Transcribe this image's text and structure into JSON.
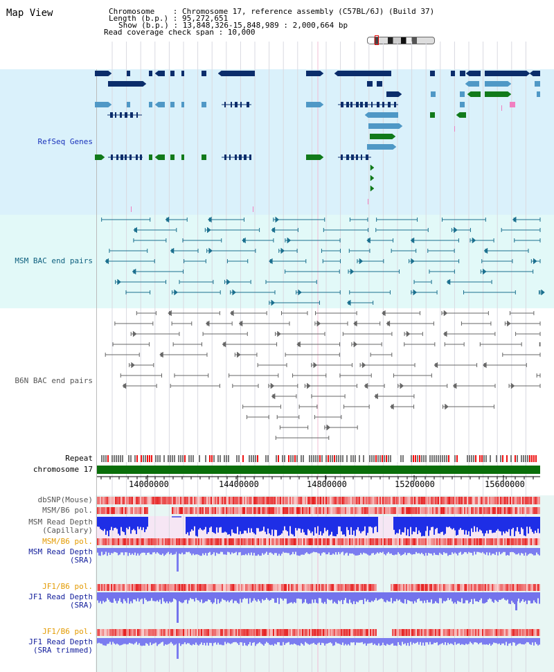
{
  "page_title": "Map View",
  "info": {
    "chromosome_line": "Chromosome    : Chromosome 17, reference assembly (C57BL/6J) (Build 37)",
    "length_line": "Length (b.p.) : 95,272,651",
    "show_line": "Show (b.p.) : 13,848,326-15,848,989 : 2,000,664 bp",
    "coverage_line": "Read coverage check span : 10,000"
  },
  "tracks": {
    "refseq": "RefSeq Genes",
    "msm_bac": "MSM BAC end pairs",
    "b6n_bac": "B6N BAC end pairs",
    "repeat": "Repeat",
    "chromosome": "chromosome 17",
    "dbsnp": "dbSNP(Mouse)",
    "msm_b6_pol_1": "MSM/B6 pol.",
    "msm_read_depth_cap_1": "MSM Read Depth",
    "msm_read_depth_cap_2": "(Capillary)",
    "msm_b6_pol_2": "MSM/B6 pol.",
    "msm_read_depth_sra_1": "MSM Read Depth",
    "msm_read_depth_sra_2": "(SRA)",
    "jf1_b6_pol_1": "JF1/B6 pol.",
    "jf1_read_depth_sra_1": "JF1 Read Depth",
    "jf1_read_depth_sra_2": "(SRA)",
    "jf1_b6_pol_2": "JF1/B6 pol.",
    "jf1_read_depth_trim_1": "JF1 Read Depth",
    "jf1_read_depth_trim_2": "(SRA trimmed)"
  },
  "axis": {
    "ticks": [
      "14000000",
      "14400000",
      "14800000",
      "15200000",
      "15600000"
    ]
  },
  "colors": {
    "refseq_bg": "#daf1fb",
    "msm_bg": "#e2f9f8",
    "b6n_bg": "#ffffff",
    "gene_dark": "#0b2d6b",
    "gene_mid": "#4f98c6",
    "gene_green": "#117a1a",
    "bac_msm": "#1a6f8e",
    "bac_b6n": "#666666",
    "chromosome_bar": "#0a6e0a",
    "label_blue": "#1a33bb",
    "label_teal": "#0d5f7e",
    "label_gray": "#555555",
    "label_orange": "#e39a00",
    "label_navy": "#101c9a"
  }
}
